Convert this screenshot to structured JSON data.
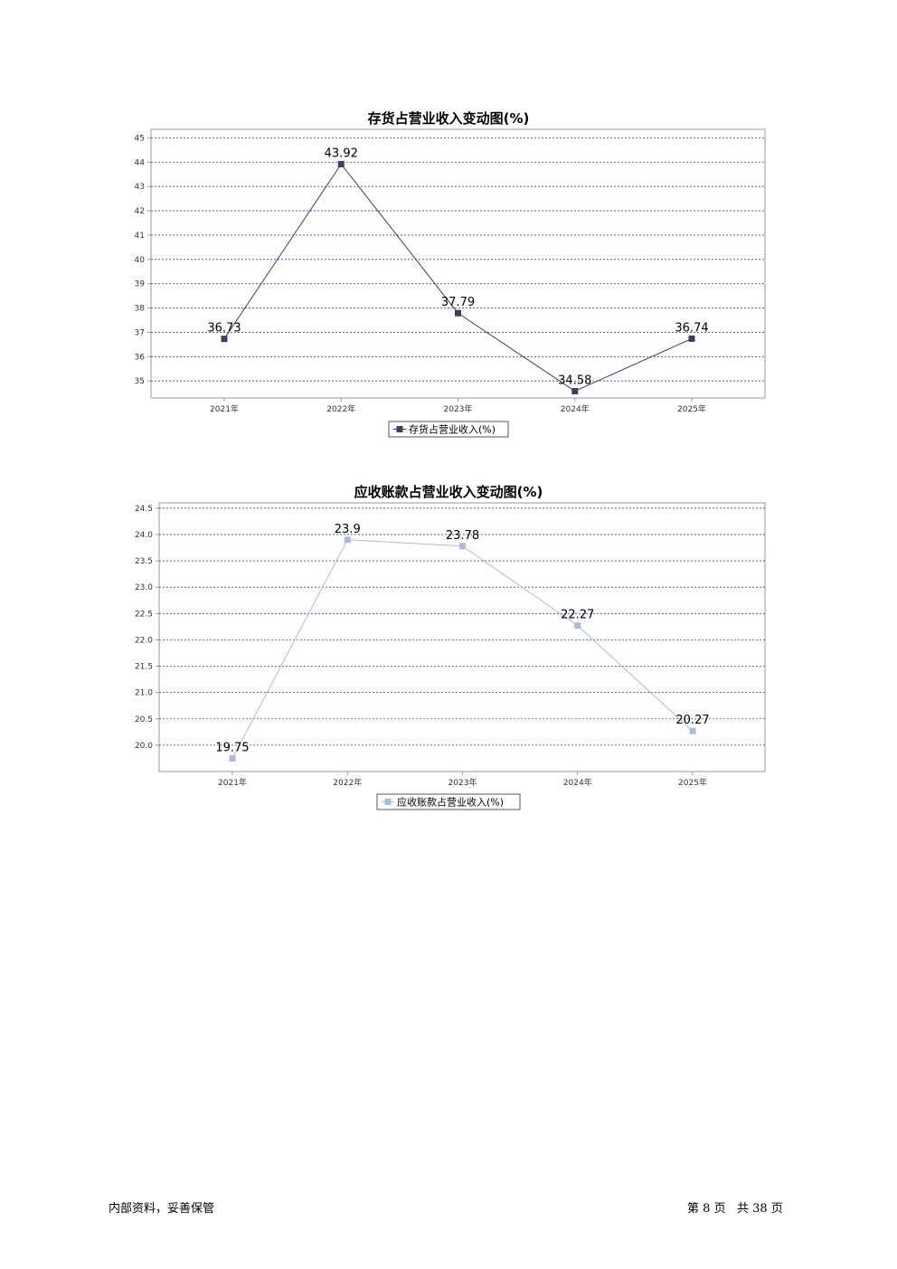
{
  "chart_data": [
    {
      "type": "line",
      "title": "存货占营业收入变动图(%)",
      "categories": [
        "2021年",
        "2022年",
        "2023年",
        "2024年",
        "2025年"
      ],
      "series": [
        {
          "name": "存货占营业收入(%)",
          "values": [
            36.73,
            43.92,
            37.79,
            34.58,
            36.74
          ],
          "color": "#3d3f5e"
        }
      ],
      "y_ticks": [
        "35",
        "36",
        "37",
        "38",
        "39",
        "40",
        "41",
        "42",
        "43",
        "44",
        "45"
      ],
      "ylim": [
        34.3,
        45.35
      ],
      "grid": true,
      "grid_color": "#3a3ad6",
      "legend_placement": "bottom"
    },
    {
      "type": "line",
      "title": "应收账款占营业收入变动图(%)",
      "categories": [
        "2021年",
        "2022年",
        "2023年",
        "2024年",
        "2025年"
      ],
      "series": [
        {
          "name": "应收账款占营业收入(%)",
          "values": [
            19.75,
            23.9,
            23.78,
            22.27,
            20.27
          ],
          "color": "#a9bcd9"
        }
      ],
      "y_ticks": [
        "20.0",
        "20.5",
        "21.0",
        "21.5",
        "22.0",
        "22.5",
        "23.0",
        "23.5",
        "24.0",
        "24.5"
      ],
      "ylim": [
        19.5,
        24.6
      ],
      "grid": true,
      "grid_color": "#3a3ad6",
      "legend_placement": "bottom"
    }
  ],
  "footer": {
    "left": "内部资料，妥善保管",
    "page_prefix": "第",
    "page_num": "8",
    "page_mid": "页",
    "total_prefix": "共",
    "total_num": "38",
    "total_suffix": "页"
  }
}
